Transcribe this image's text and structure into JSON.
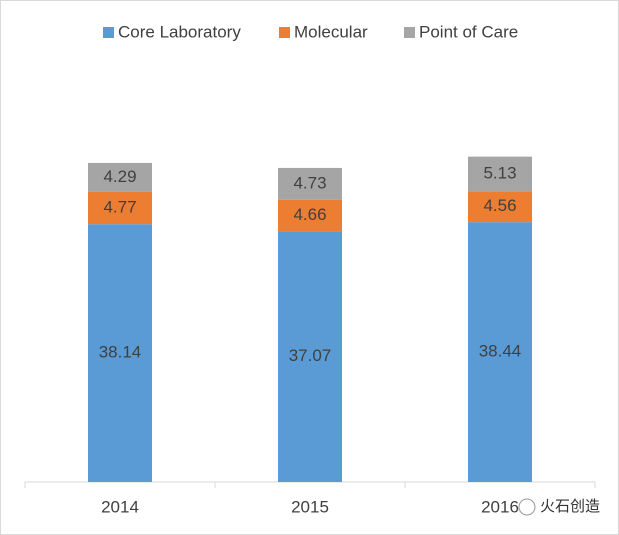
{
  "chart_data": {
    "type": "stacked-bar",
    "categories": [
      "2014",
      "2015",
      "2016"
    ],
    "series": [
      {
        "name": "Core Laboratory",
        "color": "#5b9bd5",
        "values": [
          38.14,
          37.07,
          38.44
        ]
      },
      {
        "name": "Molecular",
        "color": "#ed7d31",
        "values": [
          4.77,
          4.66,
          4.56
        ]
      },
      {
        "name": "Point of Care",
        "color": "#a5a5a5",
        "values": [
          4.29,
          4.73,
          5.13
        ]
      }
    ],
    "watermark": "火石创造"
  }
}
